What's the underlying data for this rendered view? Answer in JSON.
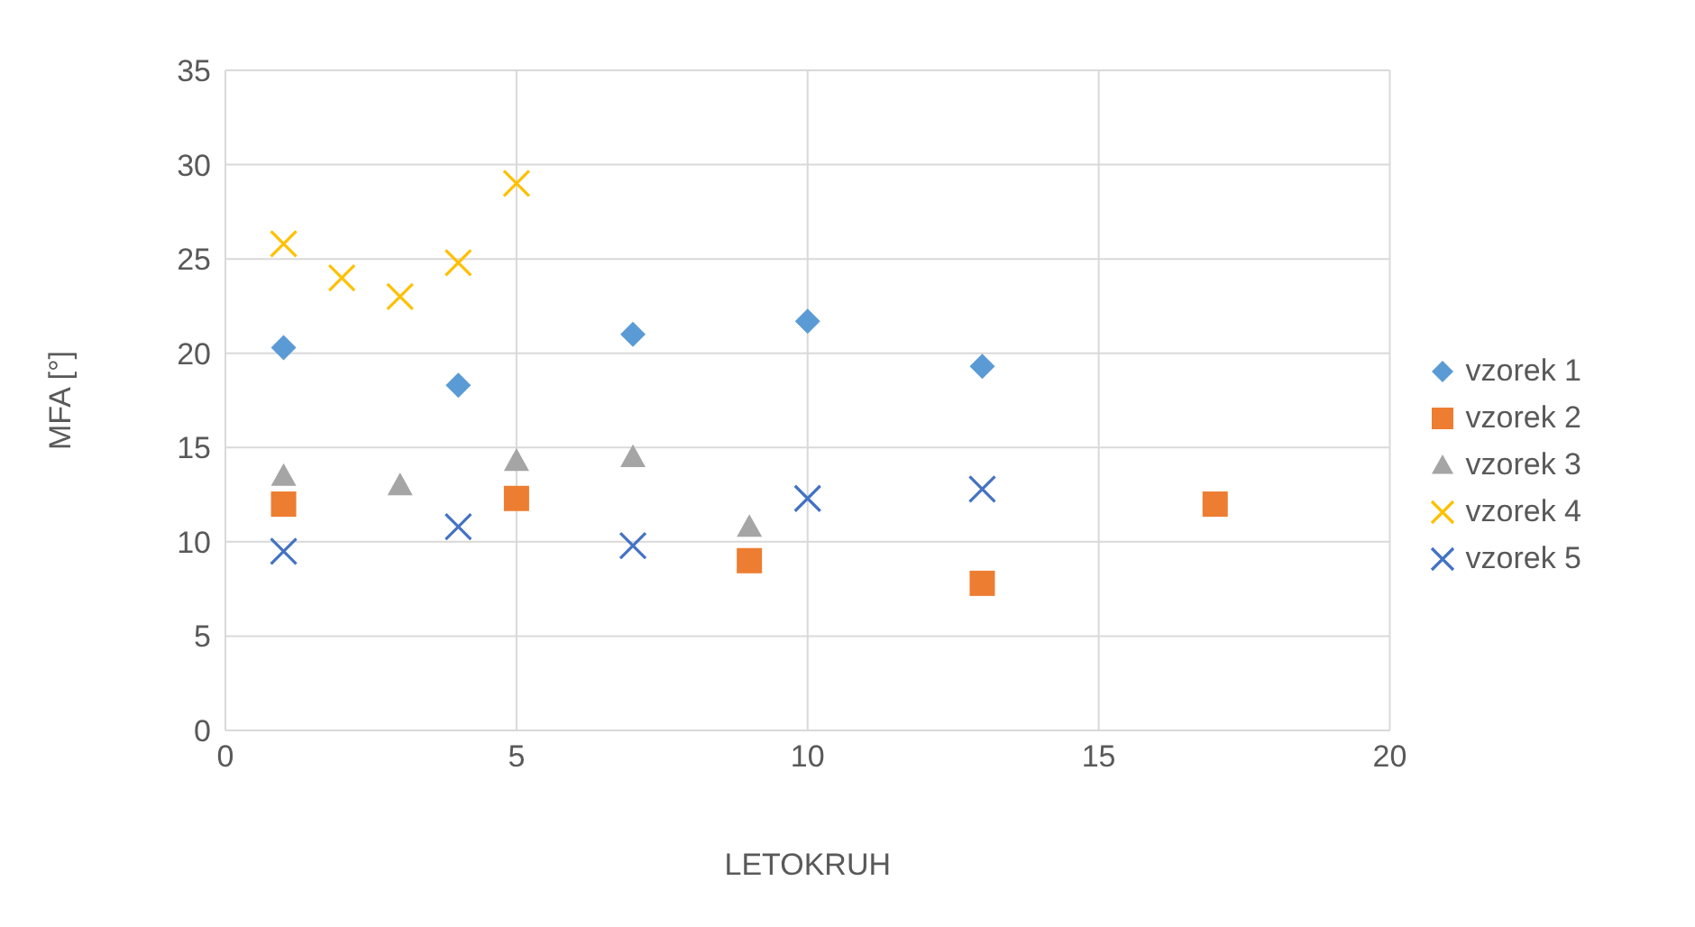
{
  "chart_data": {
    "type": "scatter",
    "xlabel": "LETOKRUH",
    "ylabel": "MFA [°]",
    "xlim": [
      0,
      20
    ],
    "xticks": [
      0,
      5,
      10,
      15,
      20
    ],
    "ylim": [
      0,
      35
    ],
    "yticks": [
      0,
      5,
      10,
      15,
      20,
      25,
      30,
      35
    ],
    "grid": true,
    "legend": "right",
    "series": [
      {
        "name": "vzorek 1",
        "color": "#5b9bd5",
        "marker": "diamond",
        "x": [
          1,
          4,
          7,
          10,
          13
        ],
        "values": [
          20.3,
          18.3,
          21,
          21.7,
          19.3
        ]
      },
      {
        "name": "vzorek 2",
        "color": "#ed7d31",
        "marker": "square",
        "x": [
          1,
          5,
          9,
          13,
          17
        ],
        "values": [
          12,
          12.3,
          9,
          7.8,
          12
        ]
      },
      {
        "name": "vzorek 3",
        "color": "#a5a5a5",
        "marker": "triangle",
        "x": [
          1,
          3,
          5,
          7,
          9
        ],
        "values": [
          13.5,
          13,
          14.3,
          14.5,
          10.8
        ]
      },
      {
        "name": "vzorek 4",
        "color": "#ffc000",
        "marker": "cross",
        "x": [
          1,
          2,
          3,
          4,
          5
        ],
        "values": [
          25.8,
          24,
          23,
          24.8,
          29
        ]
      },
      {
        "name": "vzorek 5",
        "color": "#4472c4",
        "marker": "cross",
        "x": [
          1,
          4,
          7,
          10,
          13
        ],
        "values": [
          9.5,
          10.8,
          9.8,
          12.3,
          12.8
        ]
      }
    ]
  }
}
